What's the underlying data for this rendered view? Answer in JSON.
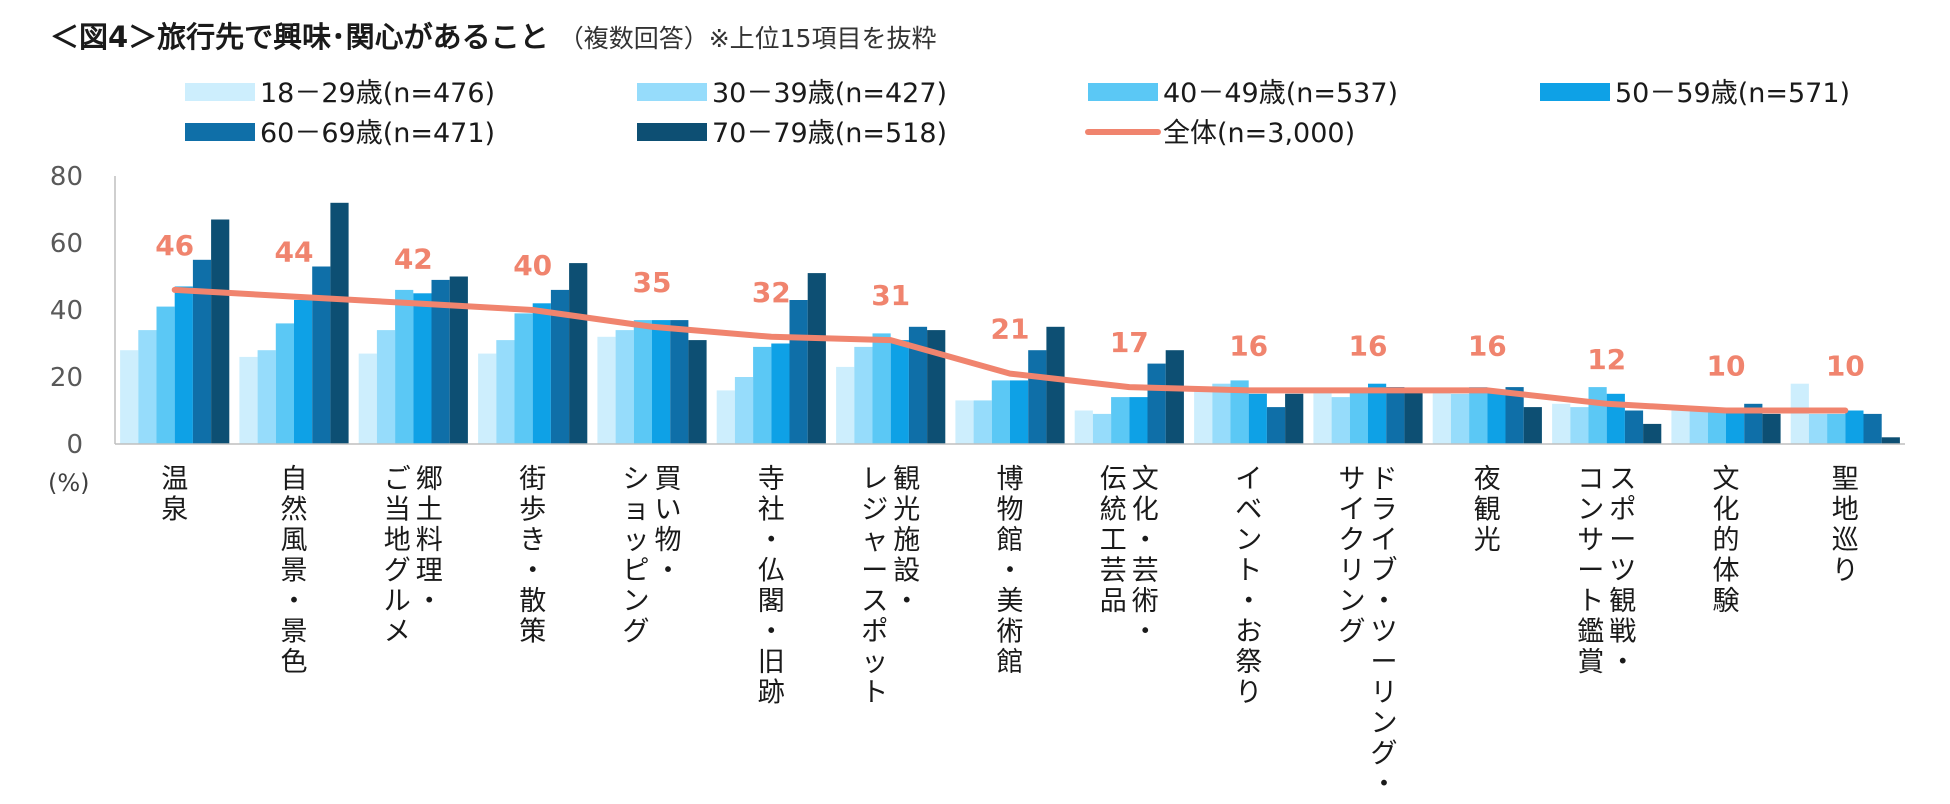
{
  "title": {
    "main": "＜図4＞旅行先で興味･関心があること",
    "sub": "（複数回答）※上位15項目を抜粋"
  },
  "chart_data": {
    "type": "bar",
    "ylim": [
      0,
      80
    ],
    "y_ticks": [
      "0",
      "20",
      "40",
      "60",
      "80"
    ],
    "y_unit_label": "(%)",
    "categories": [
      "温泉",
      "自然風景・景色",
      "郷土料理・ご当地グルメ",
      "街歩き・散策",
      "買い物・ショッピング",
      "寺社・仏閣・旧跡",
      "観光施設・レジャースポット",
      "博物館・美術館",
      "文化・芸術・伝統工芸品",
      "イベント・お祭り",
      "ドライブ・ツーリング・サイクリング",
      "夜観光",
      "スポーツ観戦・コンサート鑑賞",
      "文化的体験",
      "聖地巡り"
    ],
    "category_label_lines": [
      [
        "温泉"
      ],
      [
        "自然風景・景色"
      ],
      [
        "郷土料理・",
        "ご当地グルメ"
      ],
      [
        "街歩き・散策"
      ],
      [
        "買い物・",
        "ショッピング"
      ],
      [
        "寺社・仏閣・旧跡"
      ],
      [
        "観光施設・",
        "レジャースポット"
      ],
      [
        "博物館・美術館"
      ],
      [
        "文化・芸術・",
        "伝統工芸品"
      ],
      [
        "イベント・お祭り"
      ],
      [
        "ドライブ・ツーリング・",
        "サイクリング"
      ],
      [
        "夜観光"
      ],
      [
        "スポーツ観戦・",
        "コンサート鑑賞"
      ],
      [
        "文化的体験"
      ],
      [
        "聖地巡り"
      ]
    ],
    "series": [
      {
        "name": "18－29歳(n=476)",
        "color": "#cdeefd",
        "values": [
          28,
          26,
          27,
          27,
          32,
          16,
          23,
          13,
          10,
          16,
          16,
          16,
          12,
          11,
          18
        ]
      },
      {
        "name": "30－39歳(n=427)",
        "color": "#96dcfb",
        "values": [
          34,
          28,
          34,
          31,
          34,
          20,
          29,
          13,
          9,
          18,
          14,
          15,
          11,
          10,
          9
        ]
      },
      {
        "name": "40－49歳(n=537)",
        "color": "#5bc8f5",
        "values": [
          41,
          36,
          46,
          39,
          37,
          29,
          33,
          19,
          14,
          19,
          16,
          17,
          17,
          10,
          9
        ]
      },
      {
        "name": "50－59歳(n=571)",
        "color": "#0ea1e6",
        "values": [
          47,
          43,
          45,
          42,
          37,
          30,
          31,
          19,
          14,
          15,
          18,
          16,
          15,
          10,
          10
        ]
      },
      {
        "name": "60－69歳(n=471)",
        "color": "#0f6fa8",
        "values": [
          55,
          53,
          49,
          46,
          37,
          43,
          35,
          28,
          24,
          11,
          17,
          17,
          10,
          12,
          9
        ]
      },
      {
        "name": "70－79歳(n=518)",
        "color": "#0d4f73",
        "values": [
          67,
          72,
          50,
          54,
          31,
          51,
          34,
          35,
          28,
          15,
          16,
          11,
          6,
          9,
          2
        ]
      }
    ],
    "line_series": {
      "name": "全体(n=3,000)",
      "color": "#f0846e",
      "values": [
        46,
        44,
        42,
        40,
        35,
        32,
        31,
        21,
        17,
        16,
        16,
        16,
        12,
        10,
        10
      ]
    },
    "data_labels": [
      "46",
      "44",
      "42",
      "40",
      "35",
      "32",
      "31",
      "21",
      "17",
      "16",
      "16",
      "16",
      "12",
      "10",
      "10"
    ]
  }
}
